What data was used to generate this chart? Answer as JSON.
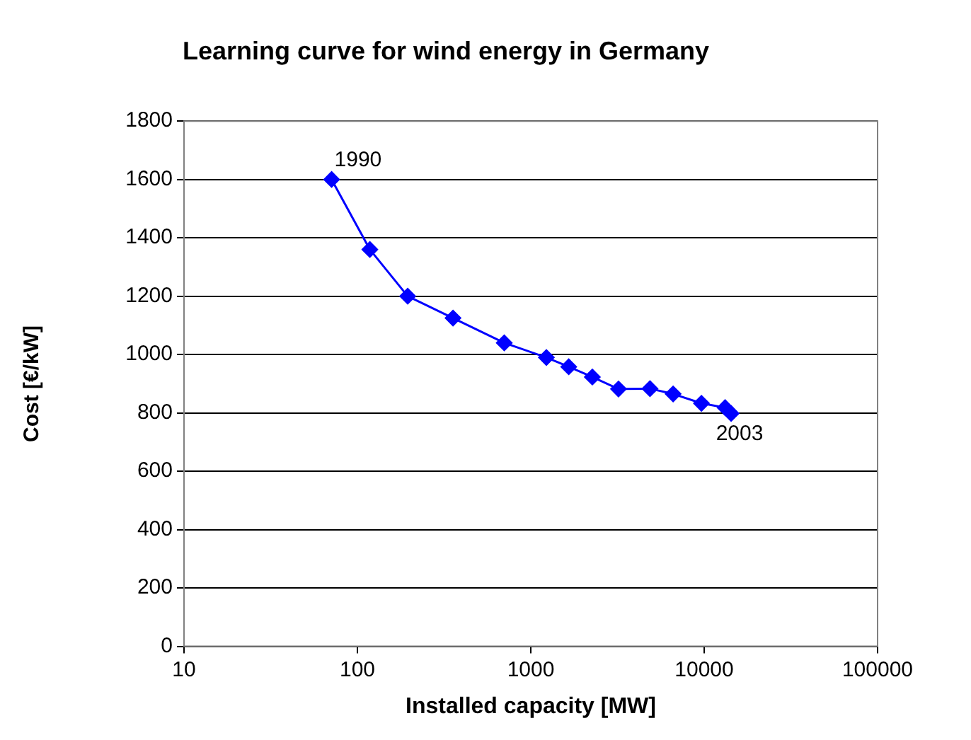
{
  "chart_data": {
    "type": "line",
    "title": "Learning curve for wind energy in Germany",
    "xlabel": "Installed capacity [MW]",
    "ylabel": "Cost [€/kW]",
    "x": [
      71,
      118,
      195,
      356,
      703,
      1230,
      1655,
      2265,
      3205,
      4870,
      6620,
      9640,
      13200,
      14300
    ],
    "series": [
      {
        "color": "#0000ff",
        "values": [
          1600,
          1360,
          1200,
          1125,
          1040,
          990,
          958,
          923,
          882,
          883,
          865,
          833,
          818,
          798
        ]
      }
    ],
    "log": "x",
    "xlim": [
      10,
      100000
    ],
    "xticks": [
      10,
      100,
      1000,
      10000,
      100000
    ],
    "ylim": [
      0,
      1800
    ],
    "yticks": [
      0,
      200,
      400,
      600,
      800,
      1000,
      1200,
      1400,
      1600,
      1800
    ],
    "grid": "y",
    "legend": false,
    "marker": "diamond",
    "line_style": "solid",
    "annotations": [
      {
        "text": "1990",
        "x": 71,
        "y": 1600
      },
      {
        "text": "2003",
        "x": 14300,
        "y": 798
      }
    ]
  }
}
